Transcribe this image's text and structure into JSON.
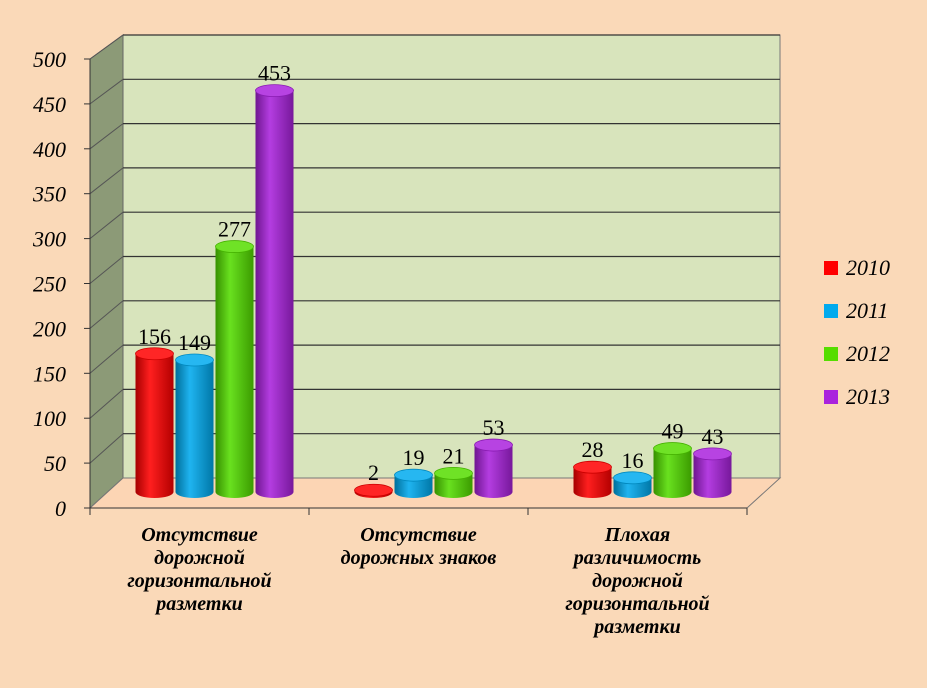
{
  "chart_data": {
    "type": "bar",
    "categories": [
      "Отсутствие\nдорожной\nгоризонтальной\nразметки",
      "Отсутствие\nдорожных знаков",
      "Плохая\nразличимость\nдорожной\nгоризонтальной\nразметки"
    ],
    "series": [
      {
        "name": "2010",
        "values": [
          156,
          2,
          28
        ],
        "color": "#ff0000"
      },
      {
        "name": "2011",
        "values": [
          149,
          19,
          16
        ],
        "color": "#00aaee"
      },
      {
        "name": "2012",
        "values": [
          277,
          21,
          49
        ],
        "color": "#55dd00"
      },
      {
        "name": "2013",
        "values": [
          453,
          53,
          43
        ],
        "color": "#aa22dd"
      }
    ],
    "ylim": [
      0,
      500
    ],
    "yticks": [
      0,
      50,
      100,
      150,
      200,
      250,
      300,
      350,
      400,
      450,
      500
    ],
    "grid": true,
    "legend": "right",
    "plot_background": "#d8e4bc",
    "page_background": "#fad9b8",
    "floor_color": "#fcd5b4"
  }
}
